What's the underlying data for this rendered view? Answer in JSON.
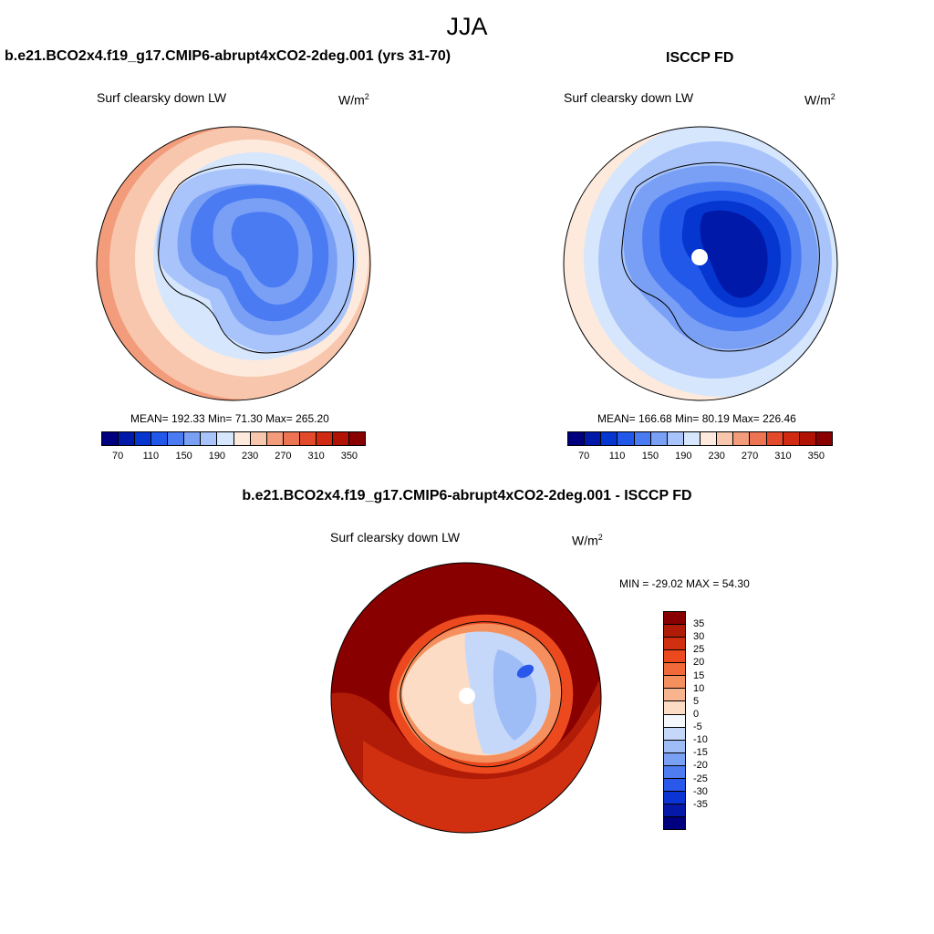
{
  "figure": {
    "title": "JJA"
  },
  "chart_data": [
    {
      "type": "heatmap",
      "title": "b.e21.BCO2x4.f19_g17.CMIP6-abrupt4xCO2-2deg.001 (yrs 31-70)",
      "variable": "Surf clearsky down LW",
      "units_base": "W/m",
      "units_exp": "2",
      "stats": {
        "text": "MEAN= 192.33  Min=  71.30  Max= 265.20",
        "mean": 192.33,
        "min": 71.3,
        "max": 265.2
      },
      "projection": "south-polar-stereographic",
      "colorbar": {
        "orientation": "horizontal",
        "levels": [
          60,
          70,
          90,
          110,
          130,
          150,
          170,
          190,
          210,
          230,
          250,
          270,
          290,
          310,
          330,
          350
        ],
        "tick_labels": [
          "70",
          "110",
          "150",
          "190",
          "230",
          "270",
          "310",
          "350"
        ],
        "colors": [
          "#00007f",
          "#0019a8",
          "#0536d0",
          "#2158ea",
          "#4a7bf2",
          "#7aa0f6",
          "#a8c4fa",
          "#d6e6fc",
          "#fdeadc",
          "#f8c6ac",
          "#f29c7c",
          "#ec7452",
          "#e34a2c",
          "#d02a12",
          "#b01204",
          "#880000"
        ]
      },
      "rings_by_level_index": [
        4,
        3,
        2,
        1
      ]
    },
    {
      "type": "heatmap",
      "title": "ISCCP FD",
      "variable": "Surf clearsky down LW",
      "units_base": "W/m",
      "units_exp": "2",
      "stats": {
        "text": "MEAN= 166.68  Min=  80.19  Max= 226.46",
        "mean": 166.68,
        "min": 80.19,
        "max": 226.46
      },
      "projection": "south-polar-stereographic",
      "colorbar": {
        "orientation": "horizontal",
        "levels": [
          60,
          70,
          90,
          110,
          130,
          150,
          170,
          190,
          210,
          230,
          250,
          270,
          290,
          310,
          330,
          350
        ],
        "tick_labels": [
          "70",
          "110",
          "150",
          "190",
          "230",
          "270",
          "310",
          "350"
        ],
        "colors": [
          "#00007f",
          "#0019a8",
          "#0536d0",
          "#2158ea",
          "#4a7bf2",
          "#7aa0f6",
          "#a8c4fa",
          "#d6e6fc",
          "#fdeadc",
          "#f8c6ac",
          "#f29c7c",
          "#ec7452",
          "#e34a2c",
          "#d02a12",
          "#b01204",
          "#880000"
        ]
      }
    },
    {
      "type": "heatmap",
      "title": "b.e21.BCO2x4.f19_g17.CMIP6-abrupt4xCO2-2deg.001 - ISCCP FD",
      "variable": "Surf clearsky down LW",
      "units_base": "W/m",
      "units_exp": "2",
      "stats": {
        "text": "MIN = -29.02 MAX =  54.30",
        "min": -29.02,
        "max": 54.3
      },
      "projection": "south-polar-stereographic",
      "colorbar": {
        "orientation": "vertical",
        "levels": [
          40,
          35,
          30,
          25,
          20,
          15,
          10,
          5,
          0,
          -5,
          -10,
          -15,
          -20,
          -25,
          -30,
          -35,
          -40
        ],
        "tick_labels": [
          "35",
          "30",
          "25",
          "20",
          "15",
          "10",
          "5",
          "0",
          "-5",
          "-10",
          "-15",
          "-20",
          "-25",
          "-30",
          "-35"
        ],
        "colors": [
          "#880000",
          "#b01c08",
          "#d03010",
          "#ec4a1e",
          "#f26a3a",
          "#f5905e",
          "#f8b48e",
          "#fcdcc4",
          "#f4f7fc",
          "#c6d8fa",
          "#9ebcf6",
          "#7aa0f4",
          "#4f7cf0",
          "#2a58ea",
          "#0b34d4",
          "#0518a8",
          "#00007f"
        ]
      }
    }
  ]
}
